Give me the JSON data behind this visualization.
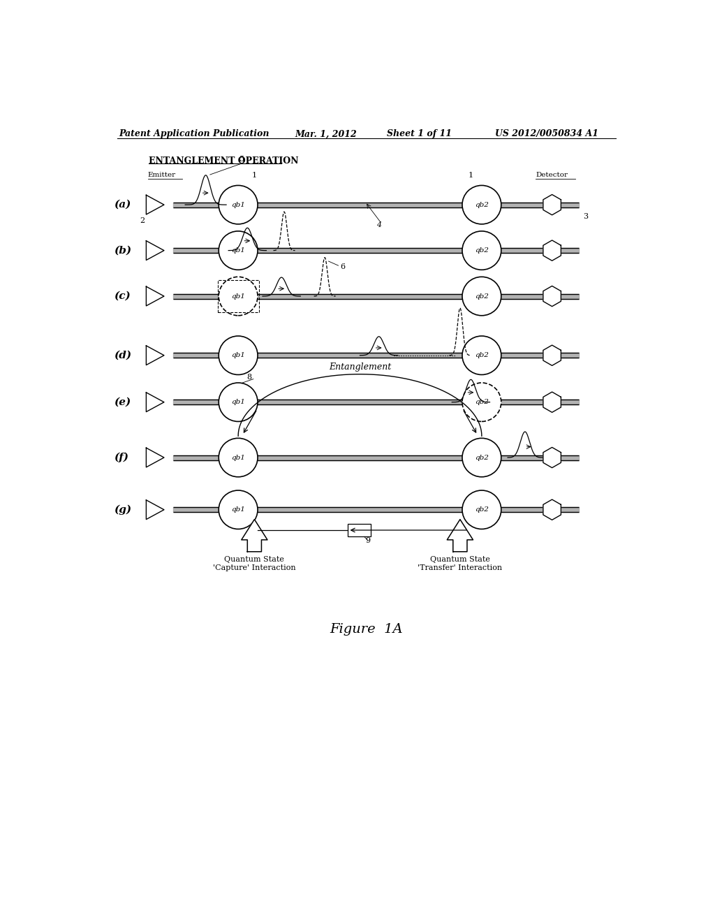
{
  "title_header": "Patent Application Publication",
  "date_header": "Mar. 1, 2012",
  "sheet_header": "Sheet 1 of 11",
  "patent_header": "US 2012/0050834 A1",
  "section_title": "ENTANGLEMENT OPERATION",
  "figure_label": "Figure  1A",
  "rows": [
    "(a)",
    "(b)",
    "(c)",
    "(d)",
    "(e)",
    "(f)",
    "(g)"
  ],
  "bg_color": "#ffffff",
  "line_color": "#000000",
  "caption1": "Quantum State\n'Capture' Interaction",
  "caption2": "Quantum State\n'Transfer' Interaction"
}
